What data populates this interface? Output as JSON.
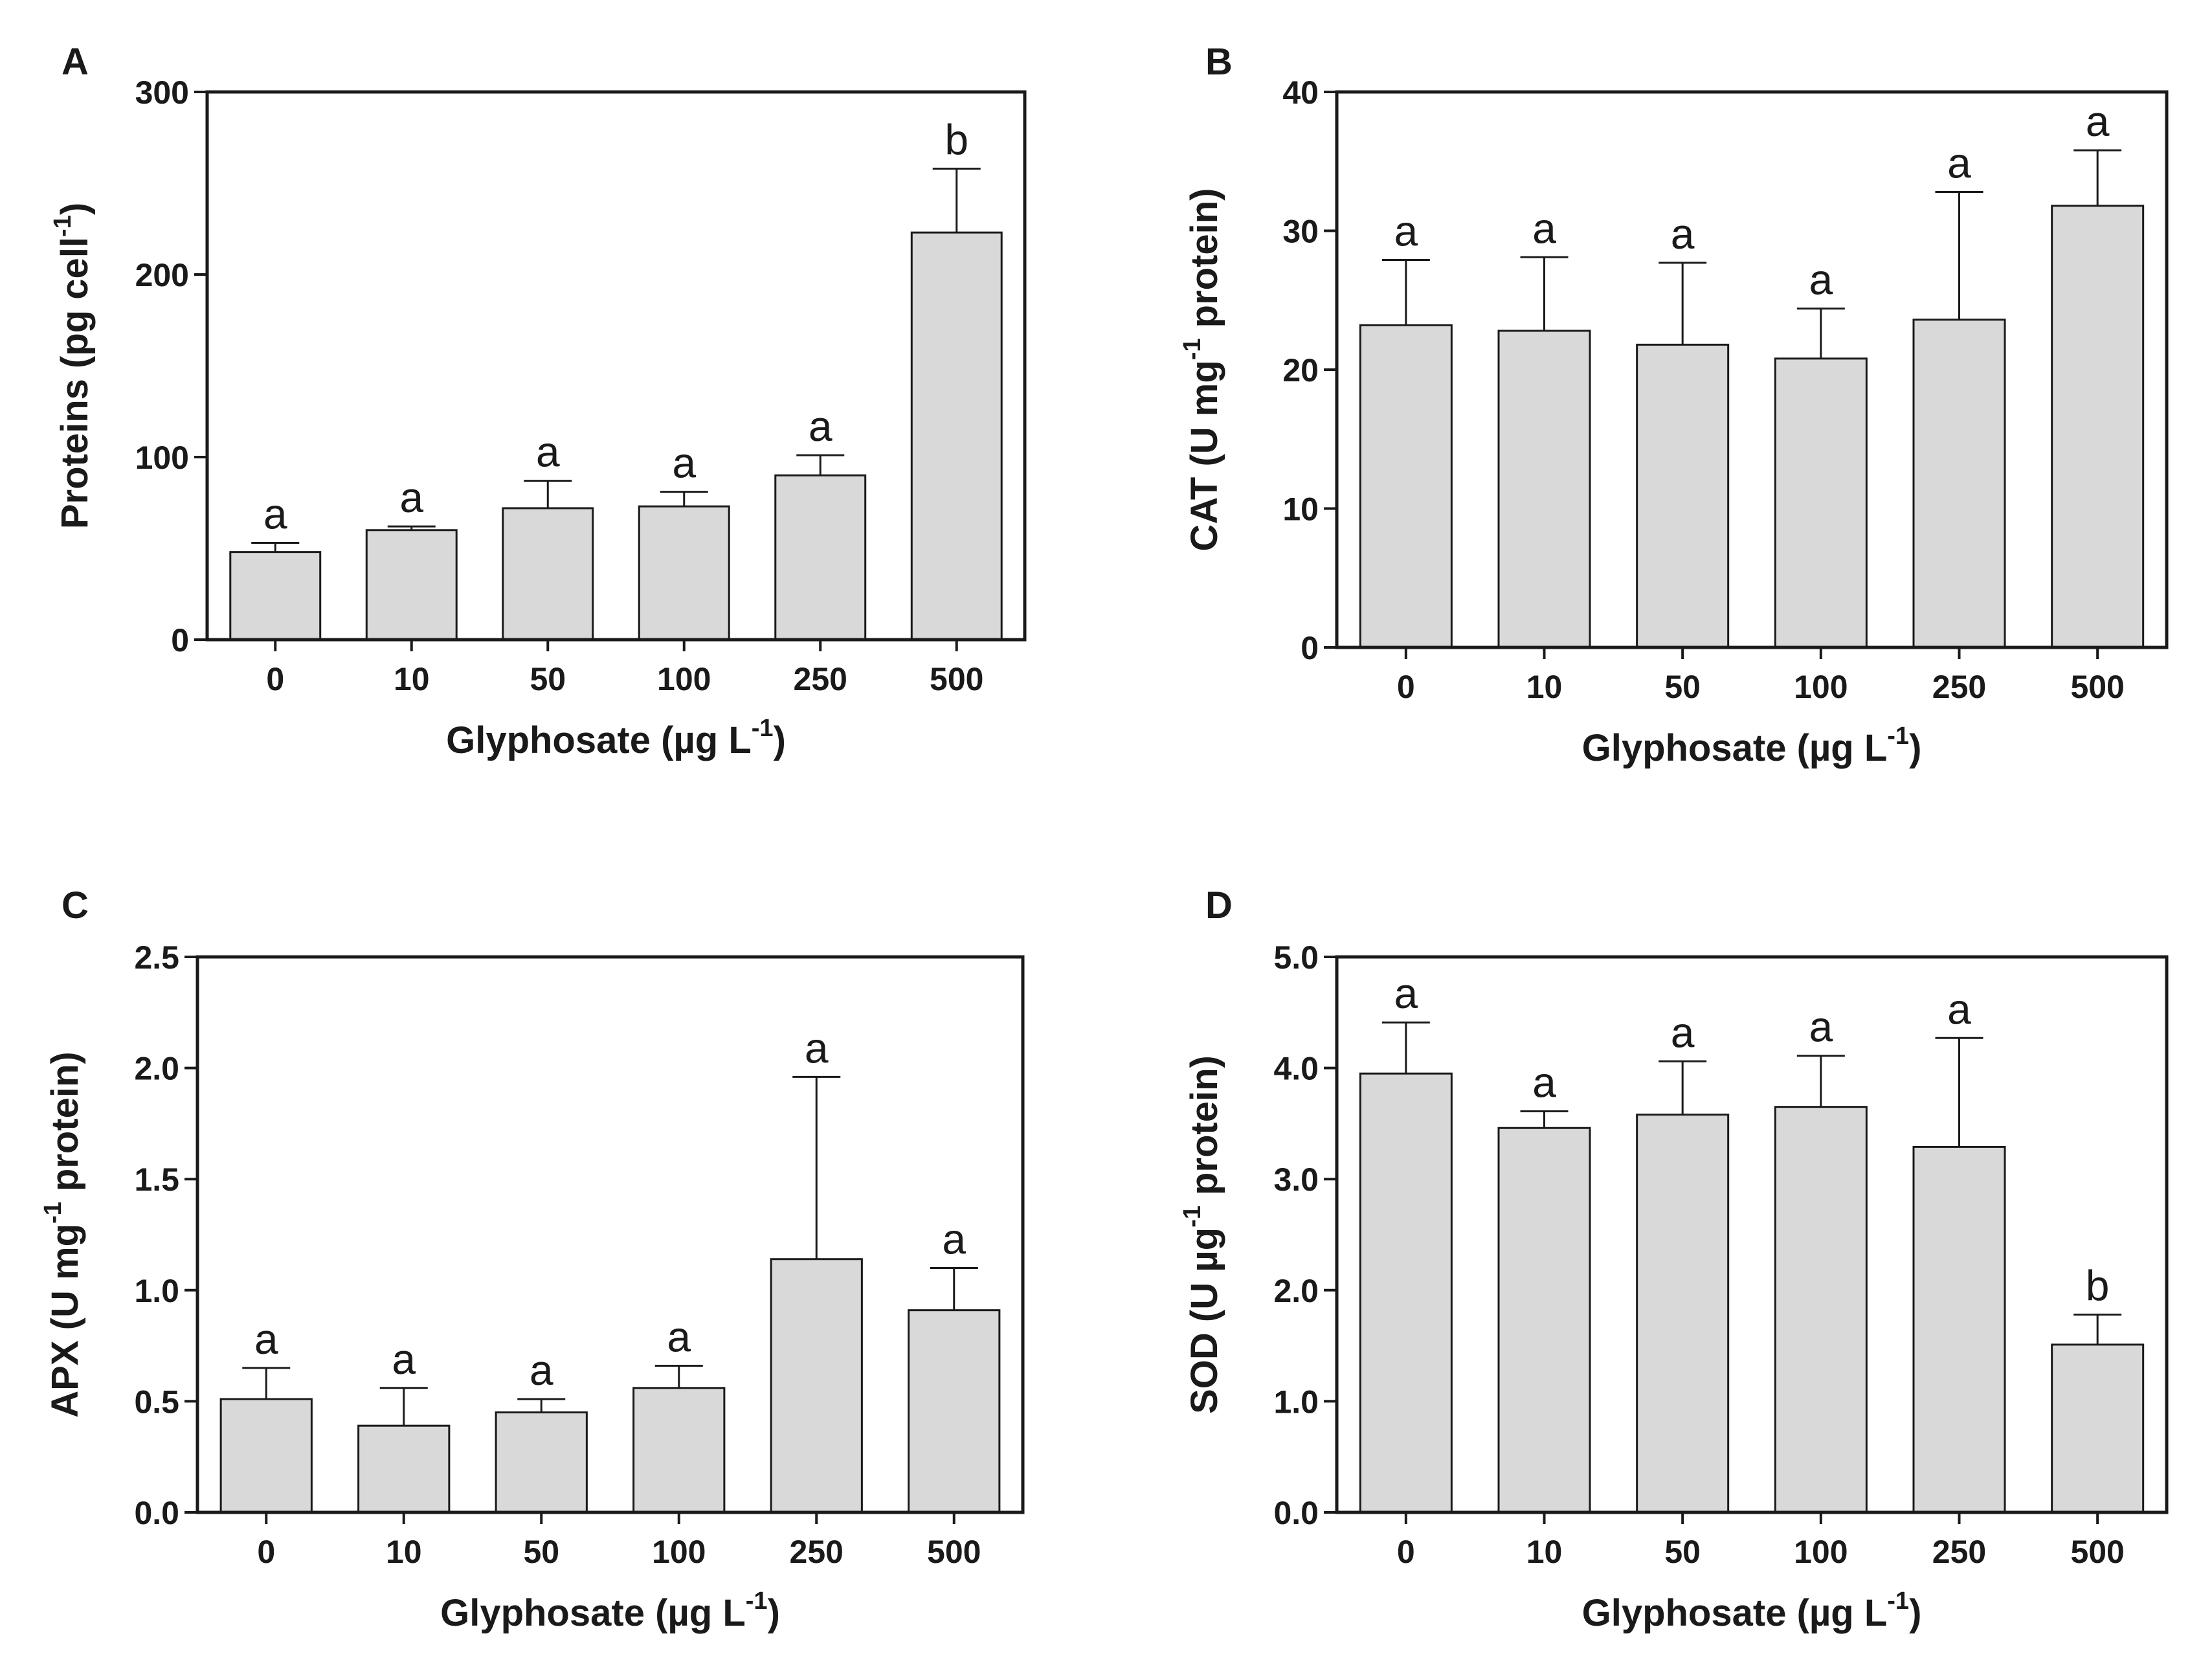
{
  "colors": {
    "bar_fill": "#d9d9d9",
    "bar_stroke": "#1a1a1a",
    "axis": "#1a1a1a"
  },
  "chart_data": [
    {
      "type": "bar",
      "panel": "A",
      "categories": [
        "0",
        "10",
        "50",
        "100",
        "250",
        "500"
      ],
      "values": [
        48,
        60,
        72,
        73,
        90,
        223
      ],
      "errors": [
        5,
        2,
        15,
        8,
        11,
        35
      ],
      "significance": [
        "a",
        "a",
        "a",
        "a",
        "a",
        "b"
      ],
      "ylim": [
        0,
        300
      ],
      "yticks": [
        "0",
        "100",
        "200",
        "300"
      ],
      "ylabel": {
        "pre": "Proteins (pg cell",
        "sup": "-1",
        "post": ")"
      },
      "xlabel": {
        "pre": "Glyphosate (µg L",
        "sup": "-1",
        "post": ")"
      }
    },
    {
      "type": "bar",
      "panel": "B",
      "categories": [
        "0",
        "10",
        "50",
        "100",
        "250",
        "500"
      ],
      "values": [
        23.2,
        22.8,
        21.8,
        20.8,
        23.6,
        31.8
      ],
      "errors": [
        4.7,
        5.3,
        5.9,
        3.6,
        9.2,
        4.0
      ],
      "significance": [
        "a",
        "a",
        "a",
        "a",
        "a",
        "a"
      ],
      "ylim": [
        0,
        40
      ],
      "yticks": [
        "0",
        "10",
        "20",
        "30",
        "40"
      ],
      "ylabel": {
        "pre": "CAT (U mg",
        "sup": "-1",
        "post": " protein)"
      },
      "xlabel": {
        "pre": "Glyphosate (µg L",
        "sup": "-1",
        "post": ")"
      }
    },
    {
      "type": "bar",
      "panel": "C",
      "categories": [
        "0",
        "10",
        "50",
        "100",
        "250",
        "500"
      ],
      "values": [
        0.51,
        0.39,
        0.45,
        0.56,
        1.14,
        0.91
      ],
      "errors": [
        0.14,
        0.17,
        0.06,
        0.1,
        0.82,
        0.19
      ],
      "significance": [
        "a",
        "a",
        "a",
        "a",
        "a",
        "a"
      ],
      "ylim": [
        0,
        2.5
      ],
      "yticks": [
        "0.0",
        "0.5",
        "1.0",
        "1.5",
        "2.0",
        "2.5"
      ],
      "ylabel": {
        "pre": "APX (U mg",
        "sup": "-1",
        "post": " protein)"
      },
      "xlabel": {
        "pre": "Glyphosate (µg L",
        "sup": "-1",
        "post": ")"
      }
    },
    {
      "type": "bar",
      "panel": "D",
      "categories": [
        "0",
        "10",
        "50",
        "100",
        "250",
        "500"
      ],
      "values": [
        3.95,
        3.46,
        3.58,
        3.65,
        3.29,
        1.51
      ],
      "errors": [
        0.46,
        0.15,
        0.48,
        0.46,
        0.98,
        0.27
      ],
      "significance": [
        "a",
        "a",
        "a",
        "a",
        "a",
        "b"
      ],
      "ylim": [
        0,
        5
      ],
      "yticks": [
        "0.0",
        "1.0",
        "2.0",
        "3.0",
        "4.0",
        "5.0"
      ],
      "ylabel": {
        "pre": "SOD (U µg",
        "sup": "-1",
        "post": " protein)"
      },
      "xlabel": {
        "pre": "Glyphosate (µg L",
        "sup": "-1",
        "post": ")"
      }
    }
  ]
}
